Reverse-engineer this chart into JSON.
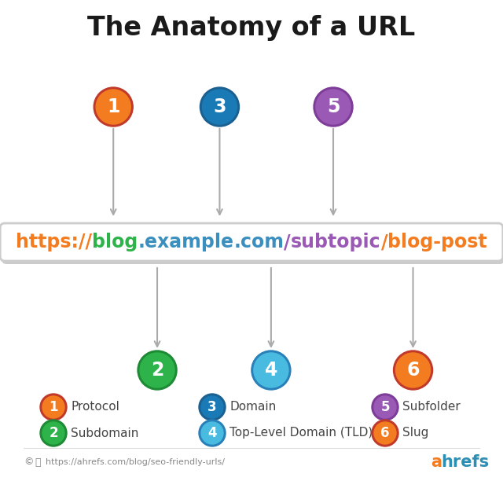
{
  "title": "The Anatomy of a URL",
  "background_color": "#ffffff",
  "segments": [
    {
      "text": "https://",
      "color": "#f47c20"
    },
    {
      "text": "blog",
      "color": "#2db34a"
    },
    {
      "text": ".",
      "color": "#3a8fbf"
    },
    {
      "text": "example",
      "color": "#3a8fbf"
    },
    {
      "text": ".",
      "color": "#3a8fbf"
    },
    {
      "text": "com",
      "color": "#3a8fbf"
    },
    {
      "text": "/",
      "color": "#9b59b6"
    },
    {
      "text": "subtopic",
      "color": "#9b59b6"
    },
    {
      "text": "/",
      "color": "#f47c20"
    },
    {
      "text": "blog-post",
      "color": "#f47c20"
    }
  ],
  "circles_top": [
    {
      "num": "1",
      "seg_idx": 0,
      "fill": "#f47c20",
      "dark": "#c0392b"
    },
    {
      "num": "3",
      "seg_idx": 3,
      "fill": "#1a7ab5",
      "dark": "#1a6090"
    },
    {
      "num": "5",
      "seg_idx": 7,
      "fill": "#9b59b6",
      "dark": "#7d3c98"
    }
  ],
  "circles_bottom": [
    {
      "num": "2",
      "seg_idx": 1,
      "fill": "#2db34a",
      "dark": "#1e8a35"
    },
    {
      "num": "4",
      "seg_idx": 5,
      "fill": "#4abbe0",
      "dark": "#2980b9"
    },
    {
      "num": "6",
      "seg_idx": 9,
      "fill": "#f47c20",
      "dark": "#c0392b"
    }
  ],
  "legend": [
    {
      "num": "1",
      "fill": "#f47c20",
      "dark": "#c0392b",
      "label": "Protocol"
    },
    {
      "num": "2",
      "fill": "#2db34a",
      "dark": "#1e8a35",
      "label": "Subdomain"
    },
    {
      "num": "3",
      "fill": "#1a7ab5",
      "dark": "#1a6090",
      "label": "Domain"
    },
    {
      "num": "4",
      "fill": "#4abbe0",
      "dark": "#2980b9",
      "label": "Top-Level Domain (TLD)"
    },
    {
      "num": "5",
      "fill": "#9b59b6",
      "dark": "#7d3c98",
      "label": "Subfolder"
    },
    {
      "num": "6",
      "fill": "#f47c20",
      "dark": "#c0392b",
      "label": "Slug"
    }
  ],
  "footer": "https://ahrefs.com/blog/seo-friendly-urls/",
  "ahrefs_a_color": "#f47c20",
  "ahrefs_rest_color": "#2d8fb3"
}
